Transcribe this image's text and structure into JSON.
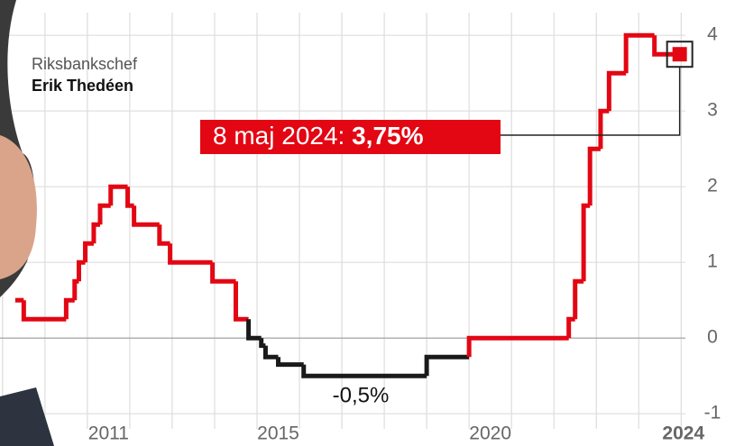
{
  "chart_data": {
    "type": "step",
    "person_role": "Riksbankschef",
    "person_name": "Erik Thedéen",
    "x": [
      2009.3,
      2009.5,
      2010.5,
      2010.7,
      2010.8,
      2010.95,
      2011.15,
      2011.3,
      2011.55,
      2011.95,
      2012.1,
      2012.7,
      2012.95,
      2013.95,
      2014.5,
      2014.8,
      2015.1,
      2015.2,
      2015.5,
      2016.1,
      2019.0,
      2020.0,
      2022.35,
      2022.5,
      2022.7,
      2022.85,
      2023.1,
      2023.3,
      2023.7,
      2024.37
    ],
    "values": [
      0.5,
      0.25,
      0.5,
      0.75,
      1.0,
      1.25,
      1.5,
      1.75,
      2.0,
      1.75,
      1.5,
      1.25,
      1.0,
      0.75,
      0.25,
      0.0,
      -0.1,
      -0.25,
      -0.35,
      -0.5,
      -0.25,
      0.0,
      0.25,
      0.75,
      1.75,
      2.5,
      3.0,
      3.5,
      4.0,
      3.75
    ],
    "color": "#e30613",
    "negative_color": "#1a1a1a",
    "xlim": [
      2008.94,
      2025.1
    ],
    "xticks": [
      2011,
      2015,
      2020,
      2024
    ],
    "ylim": [
      -1.2,
      4.3
    ],
    "yticks": [
      -1,
      0,
      1,
      2,
      3,
      4
    ],
    "grid": true,
    "annotation": {
      "date": "8 maj 2024:",
      "value_label": "3,75%"
    },
    "low_label": "-0,5%"
  }
}
